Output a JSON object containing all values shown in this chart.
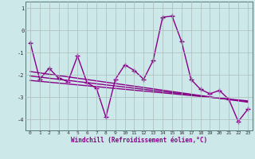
{
  "xlabel": "Windchill (Refroidissement éolien,°C)",
  "ylabel": "",
  "background_color": "#cce8e8",
  "grid_color": "#aabbbb",
  "line_color": "#880088",
  "x": [
    0,
    1,
    2,
    3,
    4,
    5,
    6,
    7,
    8,
    9,
    10,
    11,
    12,
    13,
    14,
    15,
    16,
    17,
    18,
    19,
    20,
    21,
    22,
    23
  ],
  "y_main": [
    -0.55,
    -2.2,
    -1.7,
    -2.15,
    -2.3,
    -1.15,
    -2.35,
    -2.6,
    -3.9,
    -2.2,
    -1.55,
    -1.8,
    -2.2,
    -1.35,
    0.6,
    0.65,
    -0.5,
    -2.2,
    -2.65,
    -2.85,
    -2.7,
    -3.1,
    -4.1,
    -3.55
  ],
  "y_reg1": [
    -1.85,
    -1.91,
    -1.97,
    -2.03,
    -2.09,
    -2.15,
    -2.21,
    -2.27,
    -2.33,
    -2.39,
    -2.45,
    -2.51,
    -2.57,
    -2.63,
    -2.69,
    -2.75,
    -2.81,
    -2.87,
    -2.93,
    -2.99,
    -3.05,
    -3.11,
    -3.17,
    -3.23
  ],
  "y_reg2": [
    -2.05,
    -2.1,
    -2.15,
    -2.2,
    -2.25,
    -2.3,
    -2.35,
    -2.4,
    -2.45,
    -2.5,
    -2.55,
    -2.6,
    -2.65,
    -2.7,
    -2.75,
    -2.8,
    -2.85,
    -2.9,
    -2.95,
    -3.0,
    -3.05,
    -3.1,
    -3.15,
    -3.2
  ],
  "y_reg3": [
    -2.25,
    -2.29,
    -2.33,
    -2.37,
    -2.41,
    -2.45,
    -2.49,
    -2.53,
    -2.57,
    -2.61,
    -2.65,
    -2.69,
    -2.73,
    -2.77,
    -2.81,
    -2.85,
    -2.89,
    -2.93,
    -2.97,
    -3.01,
    -3.05,
    -3.09,
    -3.13,
    -3.17
  ],
  "ylim": [
    -4.5,
    1.3
  ],
  "xlim": [
    -0.5,
    23.5
  ],
  "yticks": [
    1,
    0,
    -1,
    -2,
    -3,
    -4
  ],
  "xticks": [
    0,
    1,
    2,
    3,
    4,
    5,
    6,
    7,
    8,
    9,
    10,
    11,
    12,
    13,
    14,
    15,
    16,
    17,
    18,
    19,
    20,
    21,
    22,
    23
  ],
  "marker": "+",
  "markersize": 4,
  "linewidth": 1.0
}
